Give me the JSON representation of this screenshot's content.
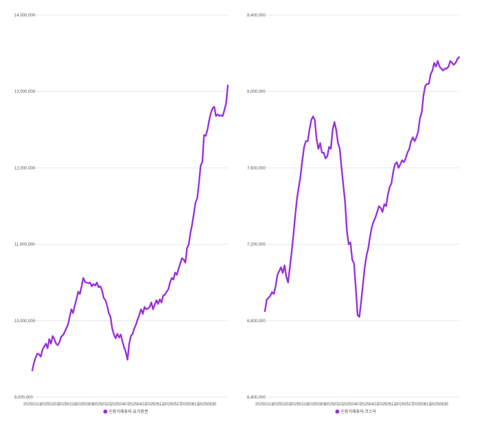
{
  "chart_data": [
    {
      "type": "line",
      "title": "",
      "xlabel": "",
      "ylabel": "",
      "ylim": [
        9000000,
        14000000
      ],
      "yticks": [
        9000000,
        10000000,
        11000000,
        12000000,
        13000000,
        14000000
      ],
      "ytick_labels": [
        "9,000,000",
        "10,000,000",
        "11,000,000",
        "12,000,000",
        "13,000,000",
        "14,000,000"
      ],
      "xtick_labels": [
        "20250113",
        "20250203",
        "20250218",
        "20250306",
        "20250321",
        "20250407",
        "20250422",
        "20250512",
        "20250527",
        "20250613",
        "20250630"
      ],
      "grid": true,
      "legend_position": "bottom-center",
      "color": "#9b30d9",
      "series": [
        {
          "name": "신용거래융자-유가증권",
          "values": [
            9350000,
            9450000,
            9520000,
            9570000,
            9560000,
            9530000,
            9620000,
            9660000,
            9700000,
            9640000,
            9760000,
            9700000,
            9800000,
            9760000,
            9700000,
            9680000,
            9720000,
            9790000,
            9810000,
            9850000,
            9900000,
            9950000,
            10050000,
            10150000,
            10100000,
            10200000,
            10280000,
            10380000,
            10350000,
            10450000,
            10560000,
            10510000,
            10500000,
            10490000,
            10500000,
            10450000,
            10480000,
            10460000,
            10500000,
            10440000,
            10450000,
            10400000,
            10300000,
            10270000,
            10200000,
            10100000,
            10050000,
            9900000,
            9820000,
            9770000,
            9830000,
            9780000,
            9820000,
            9730000,
            9650000,
            9590000,
            9490000,
            9700000,
            9800000,
            9830000,
            9900000,
            9950000,
            10020000,
            10080000,
            10150000,
            10090000,
            10180000,
            10150000,
            10160000,
            10180000,
            10240000,
            10150000,
            10210000,
            10270000,
            10220000,
            10280000,
            10240000,
            10330000,
            10340000,
            10380000,
            10410000,
            10500000,
            10560000,
            10540000,
            10630000,
            10600000,
            10680000,
            10750000,
            10820000,
            10800000,
            10760000,
            10950000,
            11000000,
            11150000,
            11260000,
            11400000,
            11550000,
            11600000,
            11800000,
            12030000,
            12080000,
            12430000,
            12420000,
            12500000,
            12620000,
            12720000,
            12780000,
            12800000,
            12680000,
            12700000,
            12680000,
            12690000,
            12680000,
            12760000,
            12850000,
            13080000
          ]
        }
      ]
    },
    {
      "type": "line",
      "title": "",
      "xlabel": "",
      "ylabel": "",
      "ylim": [
        6400000,
        8400000
      ],
      "yticks": [
        6400000,
        6800000,
        7200000,
        7600000,
        8000000,
        8400000
      ],
      "ytick_labels": [
        "6,400,000",
        "6,800,000",
        "7,200,000",
        "7,600,000",
        "8,000,000",
        "8,400,000"
      ],
      "xtick_labels": [
        "20250113",
        "20250203",
        "20250218",
        "20250306",
        "20250321",
        "20250407",
        "20250422",
        "20250512",
        "20250527",
        "20250613",
        "20250630"
      ],
      "grid": true,
      "legend_position": "bottom-center",
      "color": "#9b30d9",
      "series": [
        {
          "name": "신용거래융자-코스닥",
          "values": [
            6850000,
            6910000,
            6920000,
            6930000,
            6950000,
            6940000,
            6980000,
            7040000,
            7060000,
            7080000,
            7050000,
            7090000,
            7030000,
            7000000,
            7080000,
            7160000,
            7250000,
            7350000,
            7440000,
            7500000,
            7560000,
            7640000,
            7710000,
            7740000,
            7740000,
            7800000,
            7850000,
            7870000,
            7850000,
            7750000,
            7700000,
            7730000,
            7680000,
            7680000,
            7650000,
            7660000,
            7710000,
            7700000,
            7800000,
            7840000,
            7800000,
            7730000,
            7700000,
            7600000,
            7510000,
            7420000,
            7270000,
            7200000,
            7210000,
            7120000,
            7100000,
            6970000,
            6830000,
            6820000,
            6900000,
            6990000,
            7080000,
            7140000,
            7180000,
            7240000,
            7290000,
            7320000,
            7340000,
            7370000,
            7400000,
            7390000,
            7370000,
            7410000,
            7400000,
            7460000,
            7500000,
            7520000,
            7580000,
            7620000,
            7630000,
            7600000,
            7620000,
            7640000,
            7630000,
            7650000,
            7680000,
            7700000,
            7740000,
            7760000,
            7740000,
            7760000,
            7790000,
            7860000,
            7890000,
            7980000,
            8030000,
            8040000,
            8040000,
            8090000,
            8110000,
            8150000,
            8130000,
            8160000,
            8130000,
            8120000,
            8110000,
            8120000,
            8120000,
            8130000,
            8160000,
            8150000,
            8140000,
            8150000,
            8170000,
            8180000
          ]
        }
      ]
    }
  ]
}
